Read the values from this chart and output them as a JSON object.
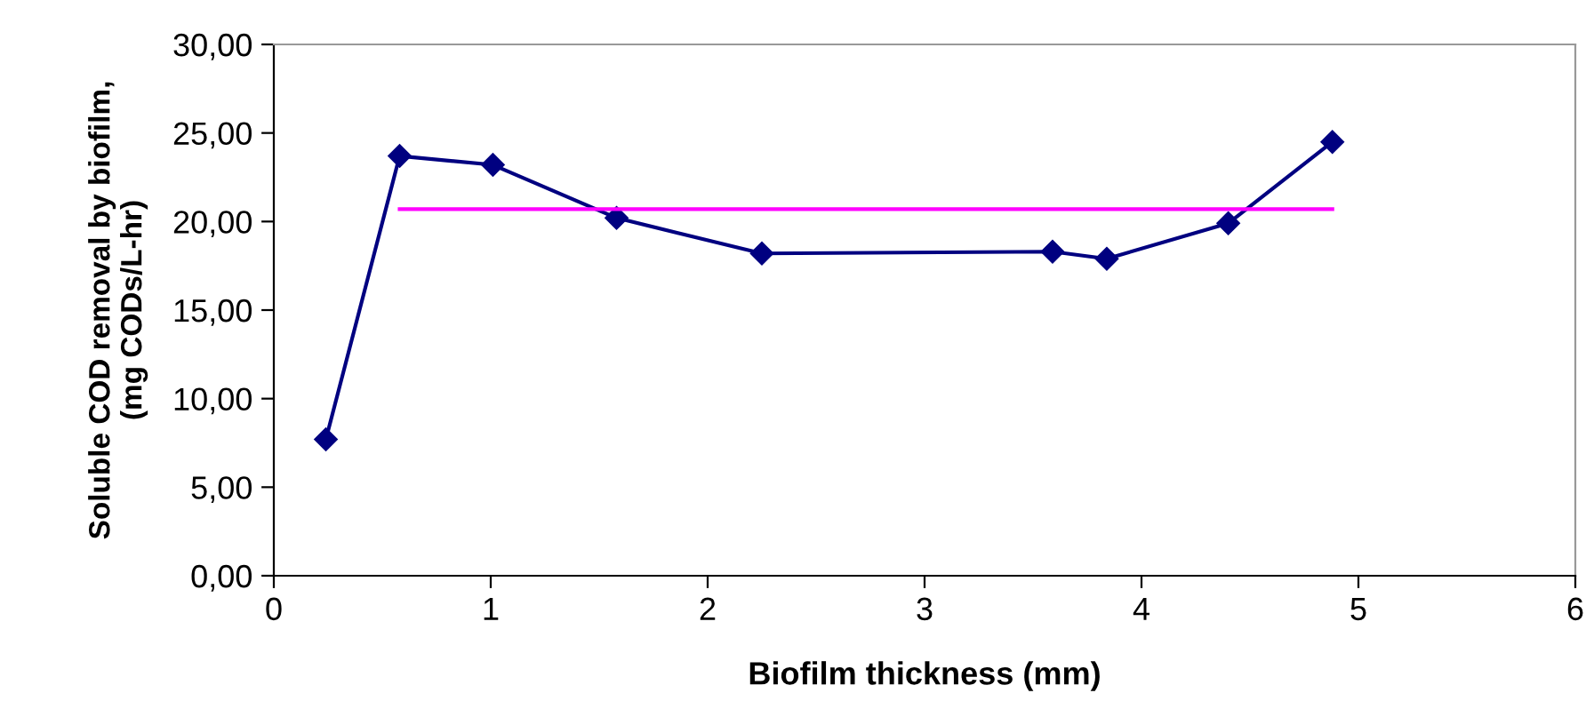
{
  "chart_data": {
    "type": "line",
    "xlabel": "Biofilm thickness (mm)",
    "ylabel": "Soluble COD removal by biofilm,\n(mg CODs/L-hr)",
    "series": [
      {
        "color": "#000080",
        "x": [
          0.24,
          0.58,
          1.01,
          1.58,
          2.25,
          3.59,
          3.84,
          4.4,
          4.88
        ],
        "values": [
          7.7,
          23.7,
          23.2,
          20.2,
          18.2,
          18.3,
          17.9,
          19.9,
          24.5
        ],
        "marker": "diamond"
      },
      {
        "color": "#ff00ff",
        "x": [
          0.58,
          4.88
        ],
        "values": [
          20.7,
          20.7
        ],
        "marker": "none"
      }
    ],
    "xlim": [
      0,
      6
    ],
    "xticks": [
      0,
      1,
      2,
      3,
      4,
      5,
      6
    ],
    "ylim": [
      0,
      30
    ],
    "yticks": [
      {
        "value": 0,
        "label": "0,00"
      },
      {
        "value": 5,
        "label": "5,00"
      },
      {
        "value": 10,
        "label": "10,00"
      },
      {
        "value": 15,
        "label": "15,00"
      },
      {
        "value": 20,
        "label": "20,00"
      },
      {
        "value": 25,
        "label": "25,00"
      },
      {
        "value": 30,
        "label": "30,00"
      }
    ],
    "grid": false,
    "legend": false,
    "line_style": "solid"
  }
}
